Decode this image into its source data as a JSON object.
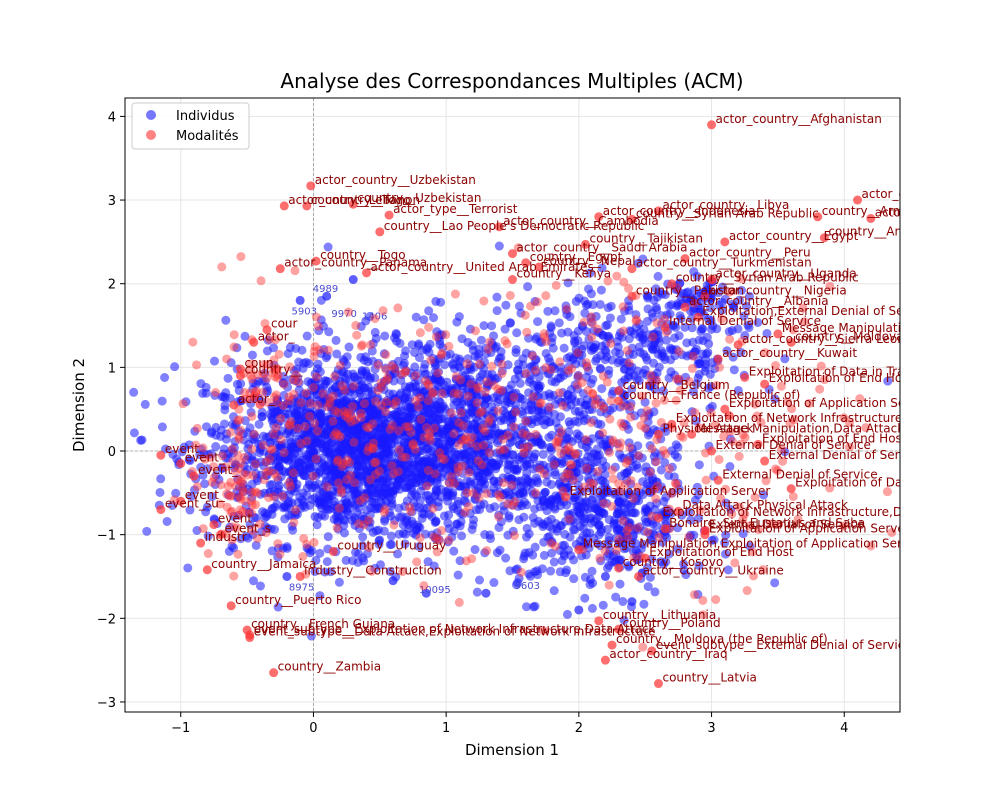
{
  "chart_data": {
    "type": "scatter",
    "title": "Analyse des Correspondances Multiples (ACM)",
    "xlabel": "Dimension 1",
    "ylabel": "Dimension 2",
    "xlim": [
      -1.42,
      4.42
    ],
    "ylim": [
      -3.12,
      4.22
    ],
    "x_ticks": [
      -1,
      0,
      1,
      2,
      3,
      4
    ],
    "y_ticks": [
      -3,
      -2,
      -1,
      0,
      1,
      2,
      3,
      4
    ],
    "tick_labels_x": [
      "−1",
      "0",
      "1",
      "2",
      "3",
      "4"
    ],
    "tick_labels_y": [
      "−3",
      "−2",
      "−1",
      "0",
      "1",
      "2",
      "3",
      "4"
    ],
    "grid": true,
    "reference_lines": {
      "x": 0,
      "y": 0
    },
    "legend": {
      "placement": "top-left",
      "entries": [
        "Individus",
        "Modalités"
      ]
    },
    "colors": {
      "individus": "#1a1aff",
      "modalites": "#ff3030",
      "modalite_label": "#8b0000",
      "individu_label": "#4a4ad0"
    },
    "series": [
      {
        "name": "Individus",
        "clusters": [
          {
            "cx": 0.3,
            "cy": 0.0,
            "sx": 0.55,
            "sy": 0.55,
            "n": 1800
          },
          {
            "cx": 1.2,
            "cy": 0.3,
            "sx": 0.55,
            "sy": 0.6,
            "n": 900
          },
          {
            "cx": 2.2,
            "cy": -0.8,
            "sx": 0.4,
            "sy": 0.45,
            "n": 500
          },
          {
            "cx": 2.4,
            "cy": 1.2,
            "sx": 0.45,
            "sy": 0.4,
            "n": 350
          },
          {
            "cx": 2.9,
            "cy": 1.8,
            "sx": 0.15,
            "sy": 0.1,
            "n": 60
          }
        ],
        "points": [
          [
            -0.1,
            1.8
          ],
          [
            0.3,
            2.05
          ],
          [
            0.1,
            1.85
          ],
          [
            0.85,
            -1.7
          ],
          [
            -0.2,
            -1.5
          ],
          [
            0.6,
            -1.55
          ],
          [
            2.4,
            -1.8
          ],
          [
            2.0,
            -1.9
          ],
          [
            1.3,
            -1.7
          ],
          [
            2.2,
            -1.5
          ]
        ],
        "point_labels": [
          {
            "text": "4989",
            "x": -0.02,
            "y": 1.95
          },
          {
            "text": "9970",
            "x": 0.12,
            "y": 1.65
          },
          {
            "text": "1406",
            "x": 0.35,
            "y": 1.62
          },
          {
            "text": "5903",
            "x": -0.18,
            "y": 1.68
          },
          {
            "text": "10095",
            "x": 0.78,
            "y": -1.65
          },
          {
            "text": "8975",
            "x": -0.2,
            "y": -1.62
          },
          {
            "text": "9603",
            "x": 1.5,
            "y": -1.6
          }
        ]
      },
      {
        "name": "Modalités",
        "labeled_points": [
          {
            "text": "actor_country__Afghanistan",
            "x": 3.0,
            "y": 3.9
          },
          {
            "text": "actor_country__Azerbaijan",
            "x": 4.1,
            "y": 3.0
          },
          {
            "text": "country__Armenia",
            "x": 3.8,
            "y": 2.8
          },
          {
            "text": "actor_country__Portugal",
            "x": 4.2,
            "y": 2.78
          },
          {
            "text": "actor_country__Uzbekistan",
            "x": -0.02,
            "y": 3.17
          },
          {
            "text": "actor_country__Togo",
            "x": -0.22,
            "y": 2.93
          },
          {
            "text": "country__Uzbekistan",
            "x": 0.3,
            "y": 2.95
          },
          {
            "text": "country__Lebanon",
            "x": -0.05,
            "y": 2.93
          },
          {
            "text": "actor_type__Terrorist",
            "x": 0.57,
            "y": 2.82
          },
          {
            "text": "country__Lao People's Democratic Republic",
            "x": 0.5,
            "y": 2.62
          },
          {
            "text": "actor_country__Indonesia",
            "x": 2.15,
            "y": 2.8
          },
          {
            "text": "actor_country__Libya",
            "x": 2.6,
            "y": 2.87
          },
          {
            "text": "country__Syrian Arab Republic",
            "x": 2.4,
            "y": 2.77
          },
          {
            "text": "actor_country__Cambodia",
            "x": 1.4,
            "y": 2.68
          },
          {
            "text": "country__Tajikistan",
            "x": 2.05,
            "y": 2.47
          },
          {
            "text": "actor_country__Egypt",
            "x": 3.1,
            "y": 2.5
          },
          {
            "text": "country__Angola",
            "x": 3.85,
            "y": 2.55
          },
          {
            "text": "actor_country__Saudi Arabia",
            "x": 1.5,
            "y": 2.36
          },
          {
            "text": "country__Egypt",
            "x": 1.6,
            "y": 2.25
          },
          {
            "text": "actor_country__Peru",
            "x": 2.8,
            "y": 2.3
          },
          {
            "text": "country__Togo",
            "x": 0.02,
            "y": 2.27
          },
          {
            "text": "actor_country__Panama",
            "x": -0.25,
            "y": 2.18
          },
          {
            "text": "actor_country__United Arab Emirates",
            "x": 0.4,
            "y": 2.13
          },
          {
            "text": "country__Nepal",
            "x": 1.7,
            "y": 2.2
          },
          {
            "text": "actor_country__Turkmenistan",
            "x": 2.4,
            "y": 2.18
          },
          {
            "text": "actor_country__Uganda",
            "x": 3.0,
            "y": 2.05
          },
          {
            "text": "country__Syrian Arab Republic",
            "x": 2.7,
            "y": 2.0
          },
          {
            "text": "country__Kenya",
            "x": 1.5,
            "y": 2.05
          },
          {
            "text": "actor_country__Nigeria",
            "x": 2.95,
            "y": 1.85
          },
          {
            "text": "country__Pakistan",
            "x": 2.4,
            "y": 1.85
          },
          {
            "text": "actor_country__Albania",
            "x": 2.8,
            "y": 1.72
          },
          {
            "text": "Exploitation,External Denial of Service",
            "x": 2.9,
            "y": 1.6
          },
          {
            "text": "Internal Denial of Service",
            "x": 2.65,
            "y": 1.48
          },
          {
            "text": "Message Manipulation,External Denial of Service",
            "x": 3.5,
            "y": 1.4
          },
          {
            "text": "country__Moldova (the Republic of)",
            "x": 3.6,
            "y": 1.3
          },
          {
            "text": "actor_country__Sierra Leone",
            "x": 3.2,
            "y": 1.27
          },
          {
            "text": "actor_country__Kuwait",
            "x": 3.05,
            "y": 1.1
          },
          {
            "text": "Exploitation of Data in Transit",
            "x": 3.25,
            "y": 0.88
          },
          {
            "text": "Exploitation of End Hosts,Exploitation of Network",
            "x": 3.4,
            "y": 0.8
          },
          {
            "text": "country__Belgium",
            "x": 2.3,
            "y": 0.72
          },
          {
            "text": "country__France (Republic of)",
            "x": 2.3,
            "y": 0.6
          },
          {
            "text": "Exploitation of Application Server,Exploitation of End Hosts,Exploitation",
            "x": 3.1,
            "y": 0.5
          },
          {
            "text": "Exploitation of Network Infrastructure,Exploitation of Sensors",
            "x": 2.7,
            "y": 0.32
          },
          {
            "text": "Message Manipulation,Data Attack",
            "x": 2.85,
            "y": 0.2
          },
          {
            "text": "Physical Attack",
            "x": 2.6,
            "y": 0.2
          },
          {
            "text": "Exploitation of End Hosts,Data Attack",
            "x": 3.35,
            "y": 0.08
          },
          {
            "text": "External Denial of Service",
            "x": 3.0,
            "y": 0.0
          },
          {
            "text": "External Denial of Service,Internal Denial of",
            "x": 3.4,
            "y": -0.12
          },
          {
            "text": "External Denial of Service",
            "x": 3.05,
            "y": -0.35
          },
          {
            "text": "Exploitation of Data in Transit",
            "x": 3.6,
            "y": -0.45
          },
          {
            "text": "Exploitation of Application Server",
            "x": 1.9,
            "y": -0.55
          },
          {
            "text": "Data Attack,Physical Attack",
            "x": 2.75,
            "y": -0.72
          },
          {
            "text": "Exploitation of Network Infrastructure,Data Attack",
            "x": 2.6,
            "y": -0.8
          },
          {
            "text": "Bonaire, Sint Eustatius and Saba",
            "x": 2.65,
            "y": -0.93
          },
          {
            "text": "External Denial of Service",
            "x": 2.95,
            "y": -0.95
          },
          {
            "text": "Exploitation of Application Server,Message Manipulation,External D",
            "x": 2.95,
            "y": -1.0
          },
          {
            "text": "Message Manipulation,Exploitation of Application Server",
            "x": 2.0,
            "y": -1.18
          },
          {
            "text": "Exploitation of End Host",
            "x": 2.5,
            "y": -1.28
          },
          {
            "text": "country__Kosovo",
            "x": 2.3,
            "y": -1.4
          },
          {
            "text": "actor_country__Ukraine",
            "x": 2.45,
            "y": -1.5
          },
          {
            "text": "industry__Construction",
            "x": -0.1,
            "y": -1.5
          },
          {
            "text": "country__Puerto Rico",
            "x": -0.62,
            "y": -1.85
          },
          {
            "text": "country__Lithuania",
            "x": 2.15,
            "y": -2.03
          },
          {
            "text": "country__Poland",
            "x": 2.3,
            "y": -2.13
          },
          {
            "text": "country__French Guiana",
            "x": -0.5,
            "y": -2.14
          },
          {
            "text": "event_subtype__Exploitation of Network Infrastructure,Data Attack",
            "x": -0.48,
            "y": -2.2
          },
          {
            "text": "event_subtype__Data Attack,Exploitation of Network Infrastructure",
            "x": -0.48,
            "y": -2.23
          },
          {
            "text": "country__Moldova (the Republic of)",
            "x": 2.25,
            "y": -2.32
          },
          {
            "text": "event_subtype__External Denial of Services",
            "x": 2.55,
            "y": -2.39
          },
          {
            "text": "actor_country__Iraq",
            "x": 2.2,
            "y": -2.5
          },
          {
            "text": "country__Zambia",
            "x": -0.3,
            "y": -2.65
          },
          {
            "text": "country__Latvia",
            "x": 2.6,
            "y": -2.78
          },
          {
            "text": "event_",
            "x": -1.15,
            "y": -0.05
          },
          {
            "text": "event_",
            "x": -1.0,
            "y": -0.15
          },
          {
            "text": "event_",
            "x": -0.9,
            "y": -0.3
          },
          {
            "text": "event_",
            "x": -1.0,
            "y": -0.6
          },
          {
            "text": "event_su",
            "x": -1.15,
            "y": -0.7
          },
          {
            "text": "industr",
            "x": -0.85,
            "y": -1.1
          },
          {
            "text": "country__Jamaica",
            "x": -0.8,
            "y": -1.42
          },
          {
            "text": "event_",
            "x": -0.75,
            "y": -0.88
          },
          {
            "text": "event_s",
            "x": -0.7,
            "y": -1.0
          },
          {
            "text": "country__Uruguay",
            "x": 0.15,
            "y": -1.2
          },
          {
            "text": "country__",
            "x": -0.55,
            "y": 0.9
          },
          {
            "text": "coun",
            "x": -0.55,
            "y": 0.98
          },
          {
            "text": "actor_",
            "x": -0.45,
            "y": 1.3
          },
          {
            "text": "cour",
            "x": -0.35,
            "y": 1.45
          },
          {
            "text": "actor_",
            "x": -0.6,
            "y": 0.55
          }
        ],
        "clusters": [
          {
            "cx": 2.3,
            "cy": 0.3,
            "sx": 0.9,
            "sy": 0.9,
            "n": 350
          },
          {
            "cx": 0.2,
            "cy": 0.2,
            "sx": 0.6,
            "sy": 0.7,
            "n": 250
          },
          {
            "cx": -0.55,
            "cy": -0.5,
            "sx": 0.15,
            "sy": 0.3,
            "n": 60
          },
          {
            "cx": -0.4,
            "cy": 0.8,
            "sx": 0.2,
            "sy": 0.3,
            "n": 40
          }
        ]
      }
    ]
  }
}
